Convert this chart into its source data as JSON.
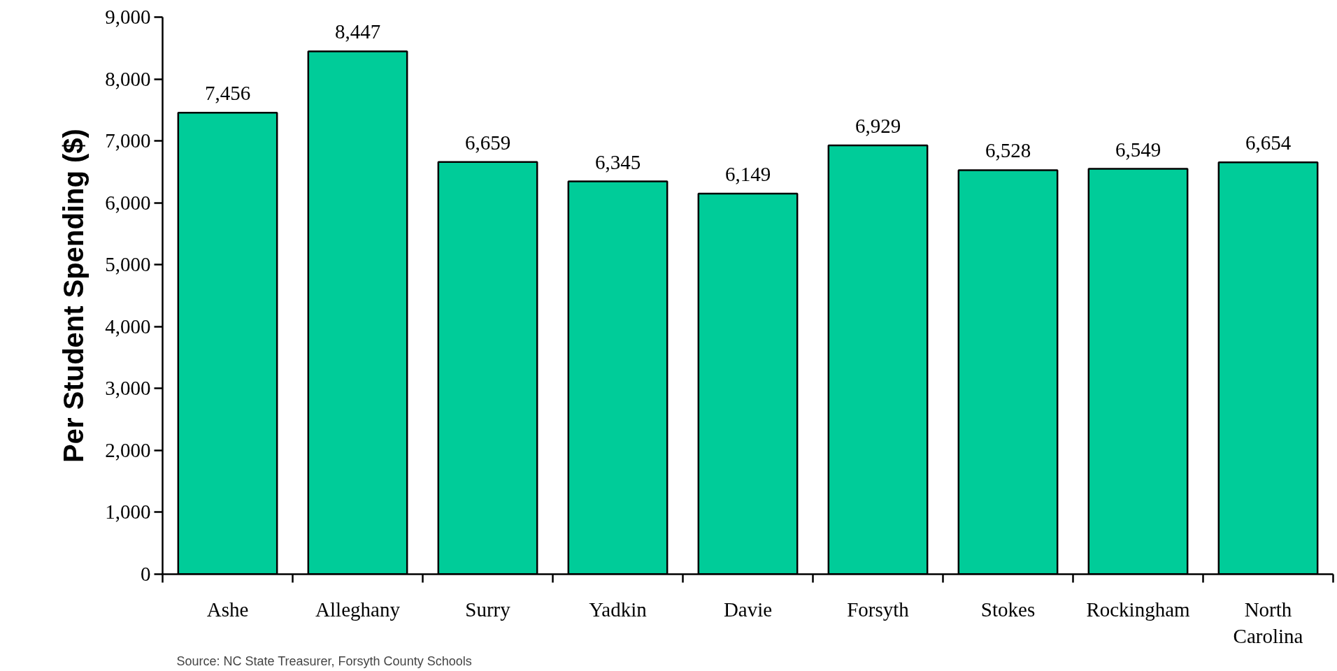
{
  "chart_data": {
    "type": "bar",
    "ylabel": "Per Student Spending ($)",
    "categories": [
      "Ashe",
      "Alleghany",
      "Surry",
      "Yadkin",
      "Davie",
      "Forsyth",
      "Stokes",
      "Rockingham",
      "North Carolina"
    ],
    "values": [
      7456,
      8447,
      6659,
      6345,
      6149,
      6929,
      6528,
      6549,
      6654
    ],
    "color": "#00cc99",
    "ylim": [
      0,
      9000
    ],
    "yticks": [
      0,
      {
        "value": 1000,
        "label": "1,000"
      },
      {
        "value": 2000,
        "label": "2,000"
      },
      {
        "value": 3000,
        "label": "3,000"
      },
      {
        "value": 4000,
        "label": "4,000"
      },
      {
        "value": 5000,
        "label": "5,000"
      },
      {
        "value": 6000,
        "label": "6,000"
      },
      {
        "value": 7000,
        "label": "7,000"
      },
      {
        "value": 8000,
        "label": "8,000"
      },
      {
        "value": 9000,
        "label": "9,000"
      }
    ],
    "value_labels": [
      "7,456",
      "8,447",
      "6,659",
      "6,345",
      "6,149",
      "6,929",
      "6,528",
      "6,549",
      "6,654"
    ],
    "grid": false,
    "annotations": [
      "Source: NC State Treasurer, Forsyth County Schools"
    ]
  }
}
